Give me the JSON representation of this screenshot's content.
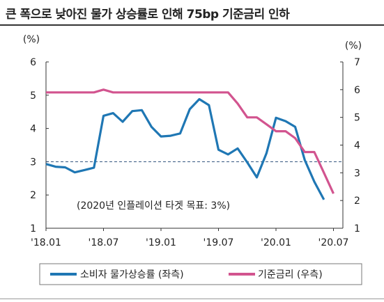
{
  "title": "큰 폭으로 낮아진 물가 상승률로 인해 75bp 기준금리 인하",
  "chart_data": {
    "type": "line",
    "left_unit": "(%)",
    "right_unit": "(%)",
    "left_axis": {
      "min": 1,
      "max": 6,
      "ticks": [
        "1",
        "2",
        "3",
        "4",
        "5",
        "6"
      ]
    },
    "right_axis": {
      "min": 1,
      "max": 7,
      "ticks": [
        "1",
        "2",
        "3",
        "4",
        "5",
        "6",
        "7"
      ]
    },
    "x_ticks": [
      {
        "label": "'18.01",
        "month": 0
      },
      {
        "label": "'18.07",
        "month": 6
      },
      {
        "label": "'19.01",
        "month": 12
      },
      {
        "label": "'19.07",
        "month": 18
      },
      {
        "label": "'20.01",
        "month": 24
      },
      {
        "label": "'20.07",
        "month": 30
      }
    ],
    "reference_line": {
      "value": 3.0,
      "axis": "left",
      "label": "(2020년 인플레이션 타겟 목표: 3%)"
    },
    "series": [
      {
        "name": "소비자 물가상승률 (좌측)",
        "axis": "left",
        "color": "#1f77b4",
        "x": [
          0,
          1,
          2,
          3,
          4,
          5,
          6,
          7,
          8,
          9,
          10,
          11,
          12,
          13,
          14,
          15,
          16,
          17,
          18,
          19,
          20,
          21,
          22,
          23,
          24,
          25,
          26,
          27,
          28,
          29
        ],
        "values": [
          2.93,
          2.85,
          2.83,
          2.68,
          2.75,
          2.82,
          4.38,
          4.46,
          4.2,
          4.52,
          4.55,
          4.05,
          3.76,
          3.78,
          3.85,
          4.58,
          4.88,
          4.7,
          3.36,
          3.22,
          3.4,
          2.98,
          2.53,
          3.25,
          4.32,
          4.22,
          4.05,
          3.05,
          2.4,
          1.86
        ]
      },
      {
        "name": "기준금리 (우측)",
        "axis": "right",
        "color": "#d2548f",
        "x": [
          0,
          1,
          2,
          3,
          4,
          5,
          6,
          7,
          8,
          9,
          10,
          11,
          12,
          13,
          14,
          15,
          16,
          17,
          18,
          19,
          20,
          21,
          22,
          23,
          24,
          25,
          26,
          27,
          28,
          29,
          30
        ],
        "values": [
          5.9,
          5.9,
          5.9,
          5.9,
          5.9,
          5.9,
          6.0,
          5.9,
          5.9,
          5.9,
          5.9,
          5.9,
          5.9,
          5.9,
          5.9,
          5.9,
          5.9,
          5.9,
          5.9,
          5.9,
          5.5,
          5.0,
          5.0,
          4.75,
          4.5,
          4.5,
          4.25,
          3.75,
          3.75,
          3.0,
          2.25
        ]
      }
    ]
  }
}
